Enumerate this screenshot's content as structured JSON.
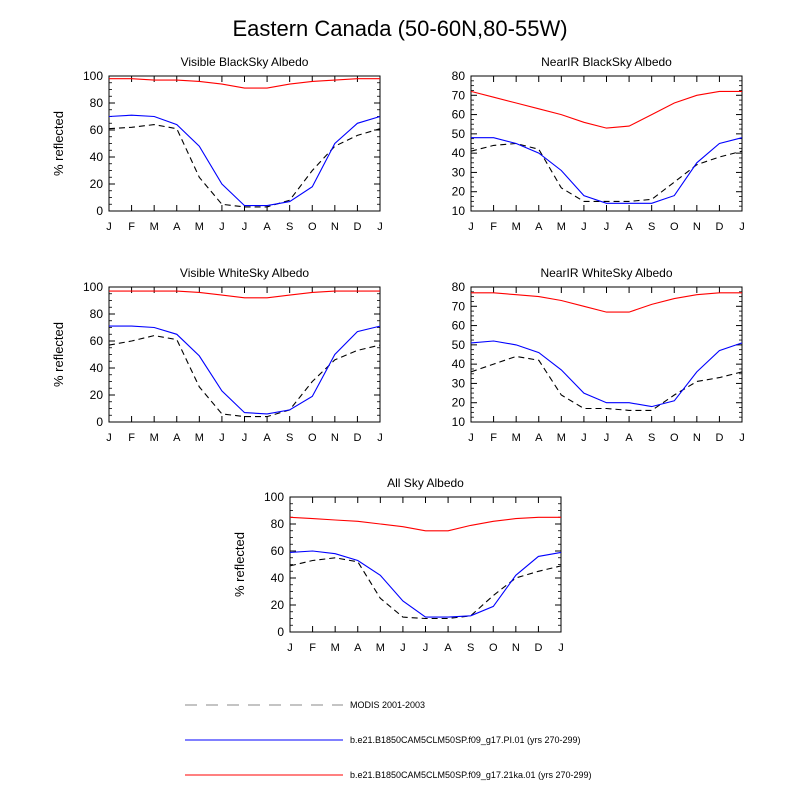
{
  "title": "Eastern Canada (50-60N,80-55W)",
  "colors": {
    "modis": "#000000",
    "pi": "#0000ff",
    "ka": "#ff0000"
  },
  "legend": [
    {
      "label": "MODIS 2001-2003",
      "key": "modis"
    },
    {
      "label": "b.e21.B1850CAM5CLM50SP.f09_g17.PI.01 (yrs 270-299)",
      "key": "pi"
    },
    {
      "label": "b.e21.B1850CAM5CLM50SP.f09_g17.21ka.01 (yrs 270-299)",
      "key": "ka"
    }
  ],
  "chart_data": [
    {
      "type": "line",
      "title": "Visible BlackSky Albedo",
      "ylabel": "% reflected",
      "ylim": [
        0,
        100
      ],
      "yticks": [
        0,
        20,
        40,
        60,
        80,
        100
      ],
      "categories": [
        "J",
        "F",
        "M",
        "A",
        "M",
        "J",
        "J",
        "A",
        "S",
        "O",
        "N",
        "D",
        "J"
      ],
      "series": [
        {
          "name": "MODIS 2001-2003",
          "key": "modis",
          "style": "dashed",
          "values": [
            61,
            62,
            64,
            61,
            25,
            5,
            3,
            3,
            8,
            30,
            48,
            56,
            61
          ]
        },
        {
          "name": "b.e21.B1850CAM5CLM50SP.f09_g17.PI.01 (yrs 270-299)",
          "key": "pi",
          "style": "solid",
          "values": [
            70,
            71,
            70,
            64,
            48,
            20,
            4,
            4,
            7,
            18,
            50,
            65,
            70
          ]
        },
        {
          "name": "b.e21.B1850CAM5CLM50SP.f09_g17.21ka.01 (yrs 270-299)",
          "key": "ka",
          "style": "solid",
          "values": [
            98,
            98,
            97,
            97,
            96,
            94,
            91,
            91,
            94,
            96,
            97,
            98,
            98
          ]
        }
      ]
    },
    {
      "type": "line",
      "title": "NearIR BlackSky Albedo",
      "ylabel": "",
      "ylim": [
        10,
        80
      ],
      "yticks": [
        10,
        20,
        30,
        40,
        50,
        60,
        70,
        80
      ],
      "categories": [
        "J",
        "F",
        "M",
        "A",
        "M",
        "J",
        "J",
        "A",
        "S",
        "O",
        "N",
        "D",
        "J"
      ],
      "series": [
        {
          "name": "MODIS 2001-2003",
          "key": "modis",
          "style": "dashed",
          "values": [
            41,
            44,
            45,
            42,
            22,
            15,
            15,
            15,
            16,
            25,
            34,
            38,
            41
          ]
        },
        {
          "name": "b.e21.B1850CAM5CLM50SP.f09_g17.PI.01 (yrs 270-299)",
          "key": "pi",
          "style": "solid",
          "values": [
            48,
            48,
            45,
            40,
            31,
            18,
            14,
            14,
            14,
            18,
            35,
            45,
            48
          ]
        },
        {
          "name": "b.e21.B1850CAM5CLM50SP.f09_g17.21ka.01 (yrs 270-299)",
          "key": "ka",
          "style": "solid",
          "values": [
            72,
            69,
            66,
            63,
            60,
            56,
            53,
            54,
            60,
            66,
            70,
            72,
            72
          ]
        }
      ]
    },
    {
      "type": "line",
      "title": "Visible WhiteSky Albedo",
      "ylabel": "% reflected",
      "ylim": [
        0,
        100
      ],
      "yticks": [
        0,
        20,
        40,
        60,
        80,
        100
      ],
      "categories": [
        "J",
        "F",
        "M",
        "A",
        "M",
        "J",
        "J",
        "A",
        "S",
        "O",
        "N",
        "D",
        "J"
      ],
      "series": [
        {
          "name": "MODIS 2001-2003",
          "key": "modis",
          "style": "dashed",
          "values": [
            57,
            60,
            64,
            61,
            26,
            6,
            4,
            4,
            9,
            30,
            46,
            53,
            57
          ]
        },
        {
          "name": "b.e21.B1850CAM5CLM50SP.f09_g17.PI.01 (yrs 270-299)",
          "key": "pi",
          "style": "solid",
          "values": [
            71,
            71,
            70,
            65,
            49,
            23,
            7,
            6,
            9,
            19,
            50,
            67,
            71
          ]
        },
        {
          "name": "b.e21.B1850CAM5CLM50SP.f09_g17.21ka.01 (yrs 270-299)",
          "key": "ka",
          "style": "solid",
          "values": [
            97,
            97,
            97,
            97,
            96,
            94,
            92,
            92,
            94,
            96,
            97,
            97,
            97
          ]
        }
      ]
    },
    {
      "type": "line",
      "title": "NearIR WhiteSky Albedo",
      "ylabel": "",
      "ylim": [
        10,
        80
      ],
      "yticks": [
        10,
        20,
        30,
        40,
        50,
        60,
        70,
        80
      ],
      "categories": [
        "J",
        "F",
        "M",
        "A",
        "M",
        "J",
        "J",
        "A",
        "S",
        "O",
        "N",
        "D",
        "J"
      ],
      "series": [
        {
          "name": "MODIS 2001-2003",
          "key": "modis",
          "style": "dashed",
          "values": [
            36,
            40,
            44,
            42,
            24,
            17,
            17,
            16,
            16,
            24,
            31,
            33,
            36
          ]
        },
        {
          "name": "b.e21.B1850CAM5CLM50SP.f09_g17.PI.01 (yrs 270-299)",
          "key": "pi",
          "style": "solid",
          "values": [
            51,
            52,
            50,
            46,
            37,
            25,
            20,
            20,
            18,
            21,
            36,
            47,
            51
          ]
        },
        {
          "name": "b.e21.B1850CAM5CLM50SP.f09_g17.21ka.01 (yrs 270-299)",
          "key": "ka",
          "style": "solid",
          "values": [
            77,
            77,
            76,
            75,
            73,
            70,
            67,
            67,
            71,
            74,
            76,
            77,
            77
          ]
        }
      ]
    },
    {
      "type": "line",
      "title": "All Sky Albedo",
      "ylabel": "% reflected",
      "ylim": [
        0,
        100
      ],
      "yticks": [
        0,
        20,
        40,
        60,
        80,
        100
      ],
      "categories": [
        "J",
        "F",
        "M",
        "A",
        "M",
        "J",
        "J",
        "A",
        "S",
        "O",
        "N",
        "D",
        "J"
      ],
      "series": [
        {
          "name": "MODIS 2001-2003",
          "key": "modis",
          "style": "dashed",
          "values": [
            49,
            53,
            55,
            52,
            25,
            11,
            10,
            10,
            12,
            27,
            40,
            45,
            49
          ]
        },
        {
          "name": "b.e21.B1850CAM5CLM50SP.f09_g17.PI.01 (yrs 270-299)",
          "key": "pi",
          "style": "solid",
          "values": [
            59,
            60,
            58,
            53,
            42,
            23,
            11,
            11,
            12,
            19,
            42,
            56,
            59
          ]
        },
        {
          "name": "b.e21.B1850CAM5CLM50SP.f09_g17.21ka.01 (yrs 270-299)",
          "key": "ka",
          "style": "solid",
          "values": [
            85,
            84,
            83,
            82,
            80,
            78,
            75,
            75,
            79,
            82,
            84,
            85,
            85
          ]
        }
      ]
    }
  ]
}
